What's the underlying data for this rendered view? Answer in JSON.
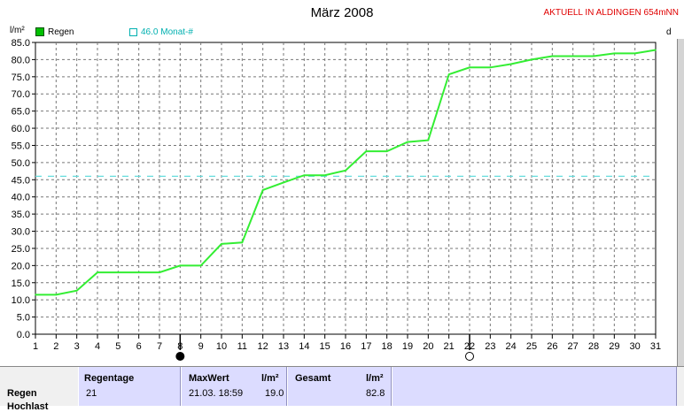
{
  "header": {
    "title": "März 2008",
    "station": "AKTUELL IN ALDINGEN 654mNN"
  },
  "legend": [
    {
      "label": "Regen",
      "color": "#00c000",
      "filled": true
    },
    {
      "label": "46.0 Monat-#",
      "color": "#00c0c0",
      "filled": false
    }
  ],
  "right_axis_label": "d",
  "chart_data": {
    "type": "line",
    "title": "März 2008",
    "ylabel": "l/m²",
    "xlabel": "",
    "ylim": [
      0,
      85
    ],
    "xlim": [
      1,
      31
    ],
    "y_ticks": [
      "0.0",
      "5.0",
      "10.0",
      "15.0",
      "20.0",
      "25.0",
      "30.0",
      "35.0",
      "40.0",
      "45.0",
      "50.0",
      "55.0",
      "60.0",
      "65.0",
      "70.0",
      "75.0",
      "80.0",
      "85.0"
    ],
    "x_ticks": [
      "1",
      "2",
      "3",
      "4",
      "5",
      "6",
      "7",
      "8",
      "9",
      "10",
      "11",
      "12",
      "13",
      "14",
      "15",
      "16",
      "17",
      "18",
      "19",
      "20",
      "21",
      "22",
      "23",
      "24",
      "25",
      "26",
      "27",
      "28",
      "29",
      "30",
      "31"
    ],
    "grid": true,
    "series": [
      {
        "name": "Regen",
        "color": "#33ee33",
        "x": [
          1,
          2,
          3,
          4,
          5,
          6,
          7,
          8,
          9,
          10,
          11,
          12,
          13,
          14,
          15,
          16,
          17,
          18,
          19,
          20,
          21,
          22,
          23,
          24,
          25,
          26,
          27,
          28,
          29,
          30,
          31
        ],
        "values": [
          11.5,
          11.5,
          12.7,
          18.0,
          18.0,
          18.0,
          18.0,
          20.0,
          20.0,
          26.3,
          26.7,
          42.0,
          44.2,
          46.3,
          46.3,
          47.7,
          53.3,
          53.3,
          56.0,
          56.5,
          75.7,
          77.7,
          77.7,
          78.7,
          80.0,
          81.0,
          81.0,
          81.0,
          81.8,
          81.8,
          82.8
        ]
      }
    ],
    "reference_line": {
      "name": "46.0 Monat-#",
      "value": 46.0,
      "color": "#66dddd"
    },
    "moon_phases": [
      {
        "day": 8,
        "type": "new"
      },
      {
        "day": 22,
        "type": "full"
      }
    ]
  },
  "summary": {
    "row_label": "Regen",
    "row_label_2": "Hochlast",
    "regentage_header": "Regentage",
    "regentage_value": "21",
    "maxwert_header": "MaxWert",
    "maxwert_unit": "l/m²",
    "maxwert_time": "21.03.  18:59",
    "maxwert_value": "19.0",
    "gesamt_header": "Gesamt",
    "gesamt_unit": "l/m²",
    "gesamt_value": "82.8"
  }
}
